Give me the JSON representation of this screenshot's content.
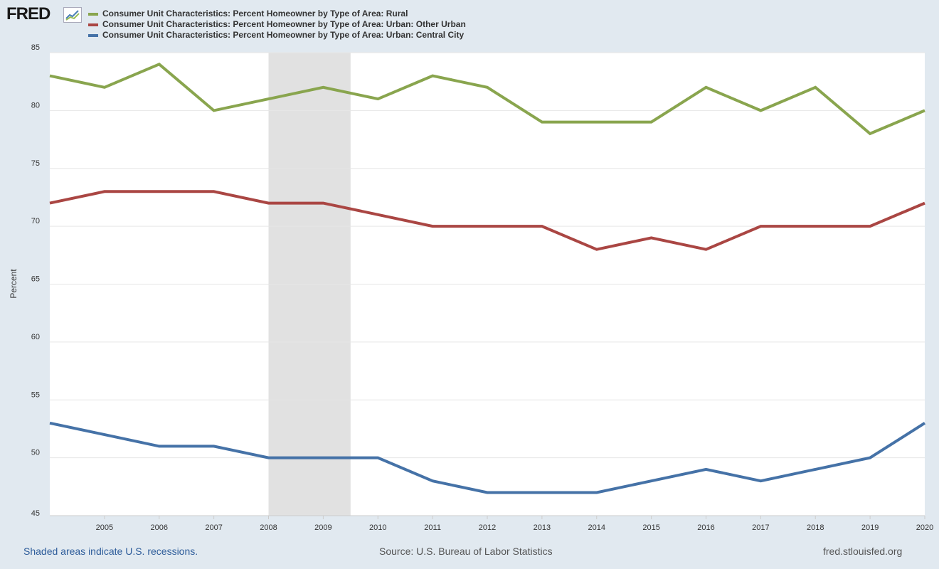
{
  "header": {
    "logo_text": "FRED",
    "logo_icon": "chart-line-icon"
  },
  "footer": {
    "recession_note": "Shaded areas indicate U.S. recessions.",
    "source": "Source: U.S. Bureau of Labor Statistics",
    "site": "fred.stlouisfed.org"
  },
  "chart_data": {
    "type": "line",
    "title": "",
    "xlabel": "",
    "ylabel": "Percent",
    "ylim": [
      45,
      85
    ],
    "yticks": [
      45,
      50,
      55,
      60,
      65,
      70,
      75,
      80,
      85
    ],
    "x": [
      2004,
      2005,
      2006,
      2007,
      2008,
      2009,
      2010,
      2011,
      2012,
      2013,
      2014,
      2015,
      2016,
      2017,
      2018,
      2019,
      2020
    ],
    "xticks": [
      2005,
      2006,
      2007,
      2008,
      2009,
      2010,
      2011,
      2012,
      2013,
      2014,
      2015,
      2016,
      2017,
      2018,
      2019,
      2020
    ],
    "xlim": [
      2004,
      2020
    ],
    "grid": true,
    "legend": "top-left",
    "recessions": [
      {
        "start": 2008.0,
        "end": 2009.5
      }
    ],
    "series": [
      {
        "name": "Consumer Unit Characteristics: Percent Homeowner by Type of Area: Rural",
        "color": "#89a54e",
        "values": [
          83,
          82,
          84,
          80,
          81,
          82,
          81,
          83,
          82,
          79,
          79,
          79,
          82,
          80,
          82,
          78,
          80
        ]
      },
      {
        "name": "Consumer Unit Characteristics: Percent Homeowner by Type of Area: Urban: Other Urban",
        "color": "#aa4643",
        "values": [
          72,
          73,
          73,
          73,
          72,
          72,
          71,
          70,
          70,
          70,
          68,
          69,
          68,
          70,
          70,
          70,
          72
        ]
      },
      {
        "name": "Consumer Unit Characteristics: Percent Homeowner by Type of Area: Urban: Central City",
        "color": "#4572a7",
        "values": [
          53,
          52,
          51,
          51,
          50,
          50,
          50,
          48,
          47,
          47,
          47,
          48,
          49,
          48,
          49,
          50,
          53
        ]
      }
    ]
  }
}
